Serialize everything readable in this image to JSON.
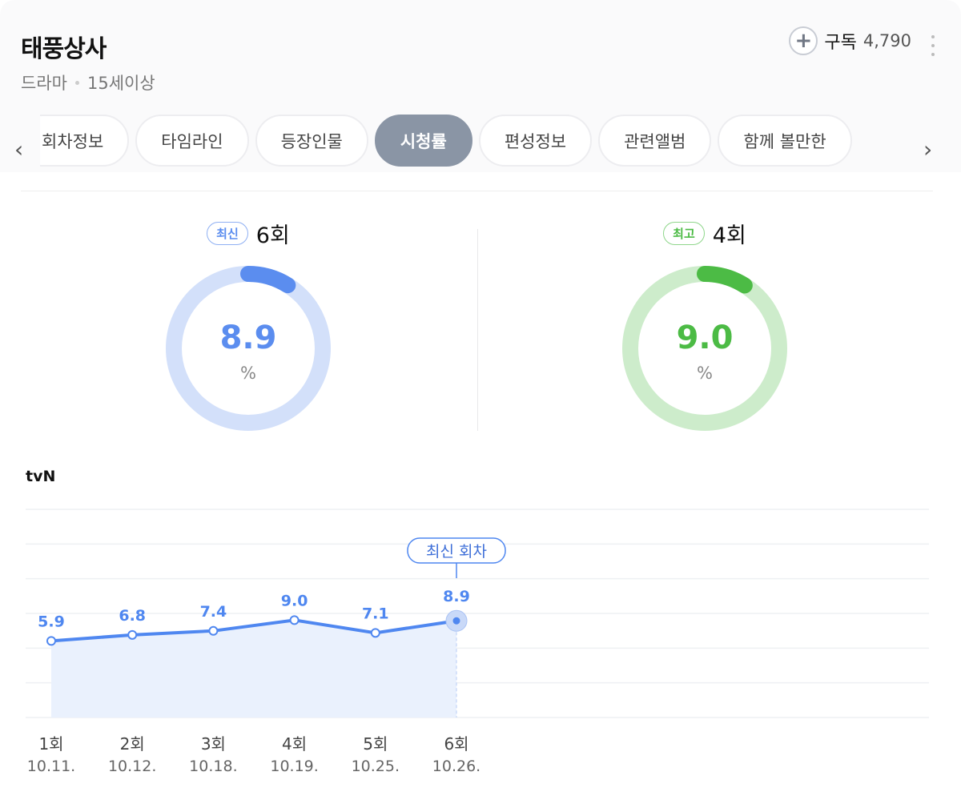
{
  "header": {
    "title": "태풍상사",
    "genre": "드라마",
    "rating": "15세이상",
    "subscribe_label": "구독",
    "subscribe_count": "4,790"
  },
  "tabs": [
    {
      "label": "회차정보"
    },
    {
      "label": "타임라인"
    },
    {
      "label": "등장인물"
    },
    {
      "label": "시청률",
      "active": true
    },
    {
      "label": "편성정보"
    },
    {
      "label": "관련앨범"
    },
    {
      "label": "함께 볼만한"
    }
  ],
  "latest": {
    "badge": "최신",
    "episode": "6회",
    "value": "8.9",
    "unit": "%",
    "percent": 8.9,
    "color": "#5b8def",
    "track": "#d3e0fa"
  },
  "best": {
    "badge": "최고",
    "episode": "4회",
    "value": "9.0",
    "unit": "%",
    "percent": 9.0,
    "color": "#4cbb45",
    "track": "#cdeccb"
  },
  "channel": "tvN",
  "chart_data": {
    "type": "line",
    "categories": [
      "1회",
      "2회",
      "3회",
      "4회",
      "5회",
      "6회"
    ],
    "dates": [
      "10.11.",
      "10.12.",
      "10.18.",
      "10.19.",
      "10.25.",
      "10.26."
    ],
    "values": [
      5.9,
      6.8,
      7.4,
      9.0,
      7.1,
      8.9
    ],
    "value_labels": [
      "5.9",
      "6.8",
      "7.4",
      "9.0",
      "7.1",
      "8.9"
    ],
    "annotation": "최신 회차",
    "ylim": [
      -5.5,
      25.5
    ],
    "grid": true,
    "color": "#4f87f0"
  }
}
